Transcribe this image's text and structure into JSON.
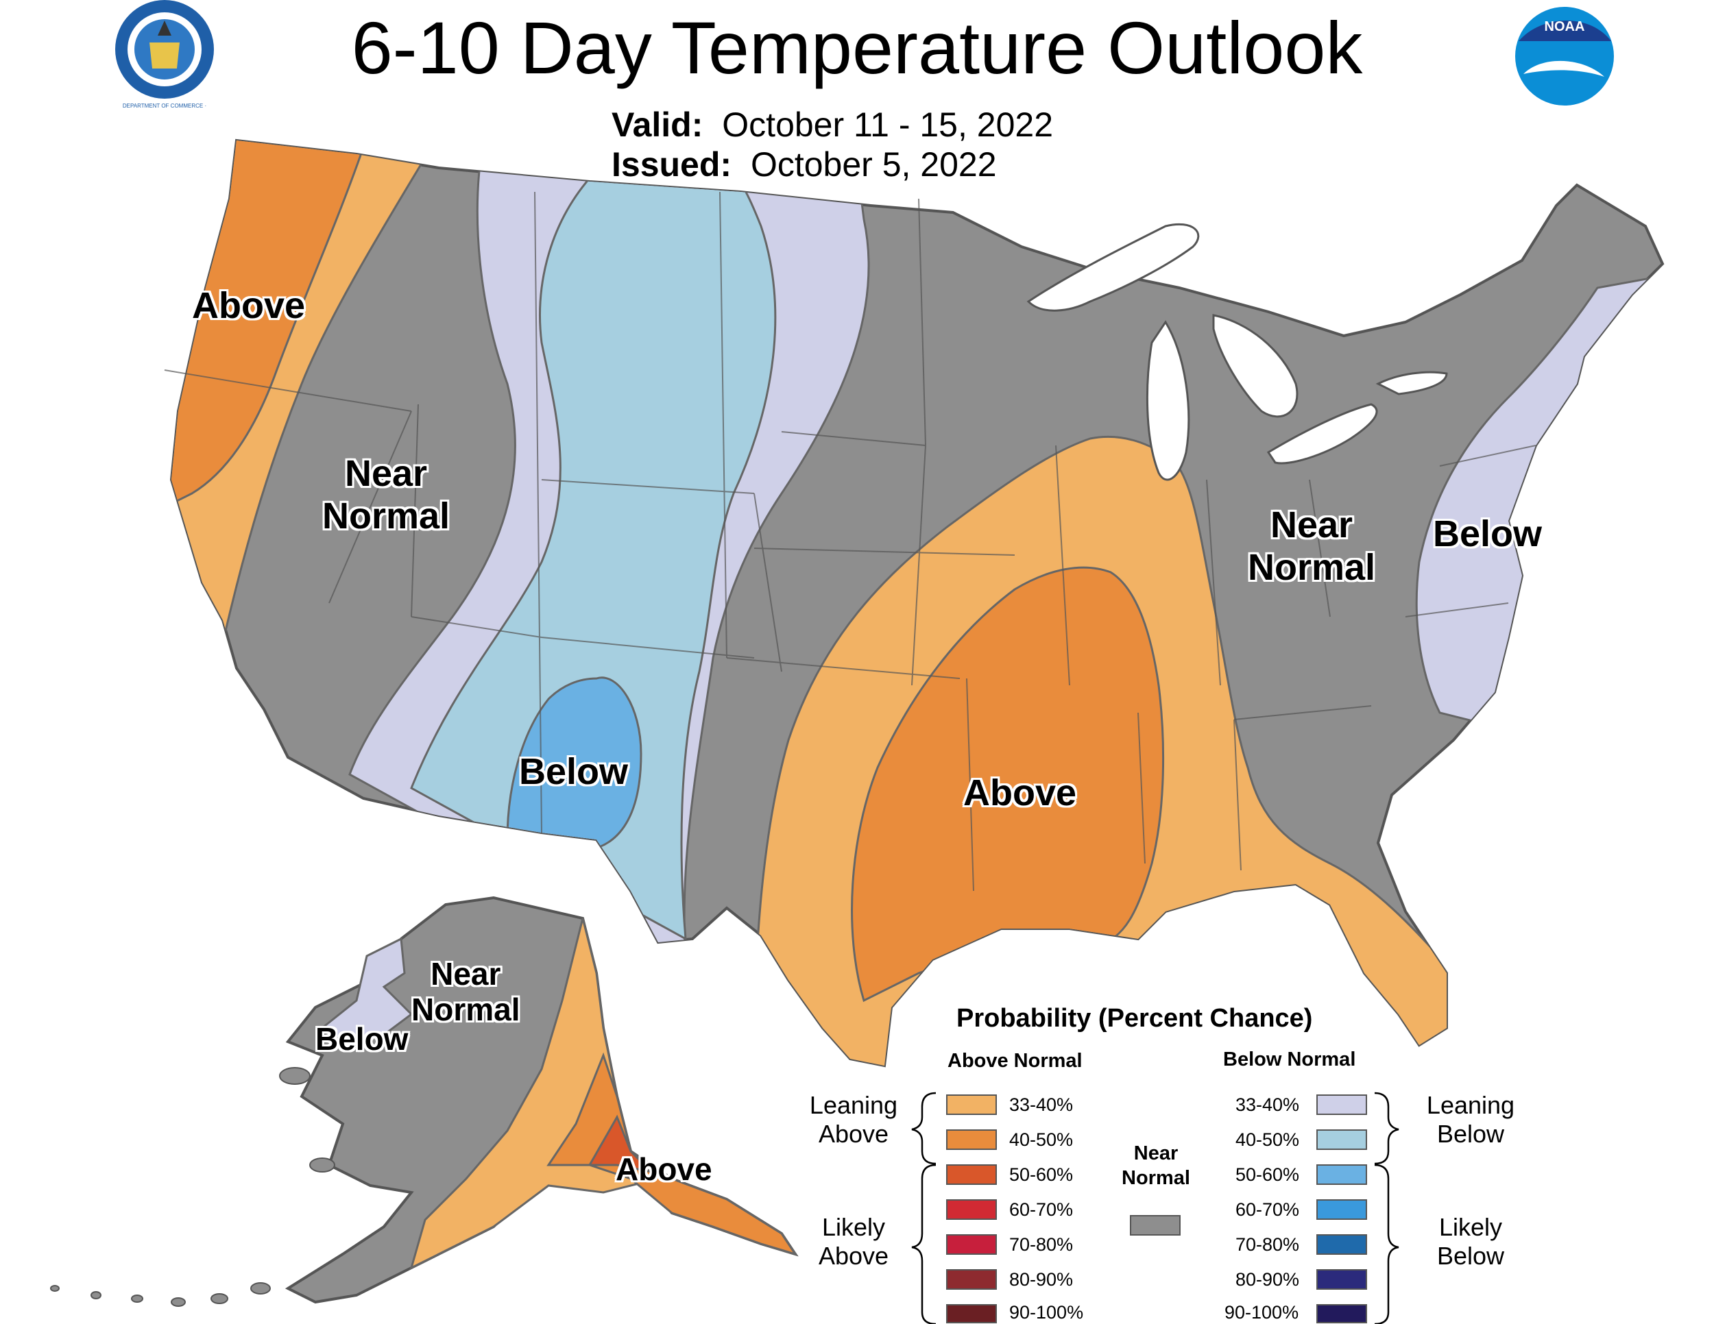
{
  "title": "6-10 Day Temperature Outlook",
  "valid_label": "Valid:",
  "valid_value": "October 11 - 15, 2022",
  "issued_label": "Issued:",
  "issued_value": "October 5, 2022",
  "logos": {
    "left": "Department of Commerce seal",
    "left_text": "DEPARTMENT OF COMMERCE · UNITED STATES OF AMERICA",
    "right": "NOAA logo",
    "right_text": "NOAA"
  },
  "map_labels": {
    "west_above": "Above",
    "west_near_1": "Near",
    "west_near_2": "Normal",
    "rockies_below": "Below",
    "south_above": "Above",
    "east_near_1": "Near",
    "east_near_2": "Normal",
    "east_below": "Below",
    "ak_near_1": "Near",
    "ak_near_2": "Normal",
    "ak_below": "Below",
    "ak_above": "Above"
  },
  "colors": {
    "above_33_40": "#f2b264",
    "above_40_50": "#e98c3c",
    "above_50_60": "#d9572a",
    "above_60_70": "#d12a33",
    "above_70_80": "#c71f3c",
    "above_80_90": "#8e2a2f",
    "above_90_100": "#6a1f23",
    "near_normal": "#8e8e8e",
    "below_33_40": "#cfd0e8",
    "below_40_50": "#a6cfe0",
    "below_50_60": "#6ab1e3",
    "below_60_70": "#3a99dc",
    "below_70_80": "#1f6aab",
    "below_80_90": "#2b2a7c",
    "below_90_100": "#221a5c",
    "border": "#555555",
    "lakes": "#ffffff"
  },
  "legend": {
    "title": "Probability (Percent Chance)",
    "above_header": "Above Normal",
    "below_header": "Below Normal",
    "near_1": "Near",
    "near_2": "Normal",
    "leaning_above_1": "Leaning",
    "leaning_above_2": "Above",
    "likely_above_1": "Likely",
    "likely_above_2": "Above",
    "leaning_below_1": "Leaning",
    "leaning_below_2": "Below",
    "likely_below_1": "Likely",
    "likely_below_2": "Below",
    "above_pcts": [
      "33-40%",
      "40-50%",
      "50-60%",
      "60-70%",
      "70-80%",
      "80-90%",
      "90-100%"
    ],
    "below_pcts": [
      "33-40%",
      "40-50%",
      "50-60%",
      "60-70%",
      "70-80%",
      "80-90%",
      "90-100%"
    ]
  }
}
